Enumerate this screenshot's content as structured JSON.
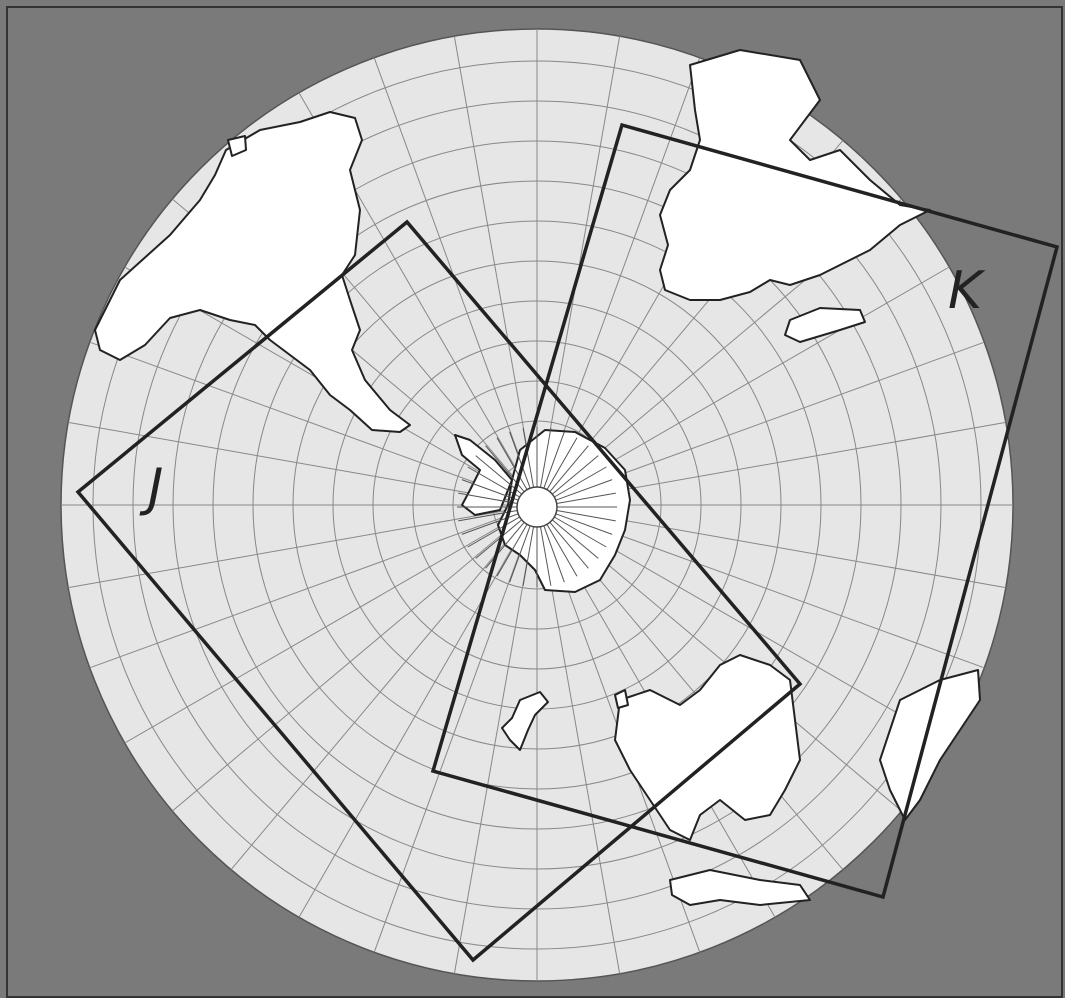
{
  "regions": [
    {
      "label": "J"
    },
    {
      "label": "K"
    }
  ]
}
